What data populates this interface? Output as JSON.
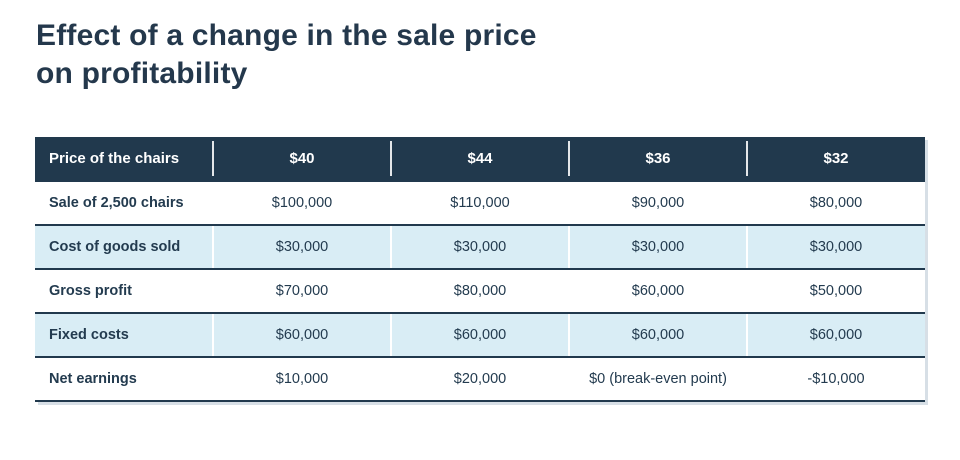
{
  "title": {
    "line1": "Effect of a change in the sale price",
    "line2": "on profitability"
  },
  "colors": {
    "navy": "#21394d",
    "light_blue": "#d9edf5",
    "background": "#ffffff",
    "header_text": "#ffffff",
    "body_text": "#233b4f"
  },
  "chart_data": {
    "type": "table",
    "title": "Effect of a change in the sale price on profitability",
    "layout": {
      "row_shading": "alternating light blue starting at second body row",
      "header_style": "dark navy with white text"
    },
    "header": {
      "label": "Price of the chairs",
      "prices": [
        "$40",
        "$44",
        "$36",
        "$32"
      ]
    },
    "rows": [
      {
        "label": "Sale of 2,500 chairs",
        "values": [
          "$100,000",
          "$110,000",
          "$90,000",
          "$80,000"
        ]
      },
      {
        "label": "Cost of goods sold",
        "values": [
          "$30,000",
          "$30,000",
          "$30,000",
          "$30,000"
        ]
      },
      {
        "label": "Gross profit",
        "values": [
          "$70,000",
          "$80,000",
          "$60,000",
          "$50,000"
        ]
      },
      {
        "label": "Fixed costs",
        "values": [
          "$60,000",
          "$60,000",
          "$60,000",
          "$60,000"
        ]
      },
      {
        "label": "Net earnings",
        "values": [
          "$10,000",
          "$20,000",
          "$0 (break-even point)",
          "-$10,000"
        ]
      }
    ]
  }
}
